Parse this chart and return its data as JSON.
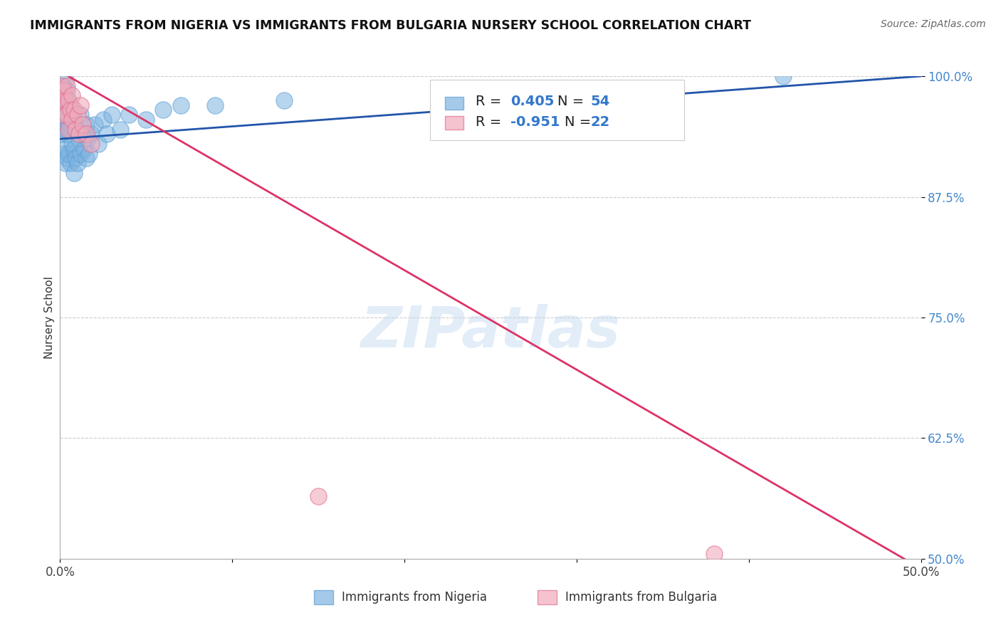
{
  "title": "IMMIGRANTS FROM NIGERIA VS IMMIGRANTS FROM BULGARIA NURSERY SCHOOL CORRELATION CHART",
  "source": "Source: ZipAtlas.com",
  "ylabel": "Nursery School",
  "xlim": [
    0.0,
    0.5
  ],
  "ylim": [
    0.5,
    1.0
  ],
  "xticks": [
    0.0,
    0.1,
    0.2,
    0.3,
    0.4,
    0.5
  ],
  "xticklabels": [
    "0.0%",
    "",
    "",
    "",
    "",
    "50.0%"
  ],
  "yticks": [
    0.5,
    0.625,
    0.75,
    0.875,
    1.0
  ],
  "yticklabels": [
    "50.0%",
    "62.5%",
    "75.0%",
    "87.5%",
    "100.0%"
  ],
  "nigeria_R": 0.405,
  "nigeria_N": 54,
  "bulgaria_R": -0.951,
  "bulgaria_N": 22,
  "nigeria_color": "#7EB3E0",
  "nigeria_edge_color": "#5B9FD4",
  "bulgaria_color": "#F0AABB",
  "bulgaria_edge_color": "#E07090",
  "nigeria_trend_color": "#2255AA",
  "bulgaria_trend_color": "#DD3366",
  "watermark": "ZIPatlas",
  "legend_R_color": "#3377CC",
  "legend_N_color": "#3377CC",
  "nigeria_x": [
    0.001,
    0.001,
    0.001,
    0.002,
    0.002,
    0.002,
    0.002,
    0.003,
    0.003,
    0.003,
    0.003,
    0.003,
    0.004,
    0.004,
    0.004,
    0.004,
    0.005,
    0.005,
    0.005,
    0.006,
    0.006,
    0.006,
    0.007,
    0.007,
    0.008,
    0.008,
    0.008,
    0.009,
    0.009,
    0.01,
    0.01,
    0.011,
    0.012,
    0.012,
    0.013,
    0.014,
    0.015,
    0.015,
    0.016,
    0.017,
    0.018,
    0.02,
    0.022,
    0.025,
    0.027,
    0.03,
    0.035,
    0.04,
    0.05,
    0.06,
    0.07,
    0.09,
    0.13,
    0.42
  ],
  "nigeria_y": [
    0.975,
    0.96,
    0.94,
    0.99,
    0.975,
    0.955,
    0.92,
    0.995,
    0.97,
    0.945,
    0.925,
    0.91,
    0.985,
    0.965,
    0.94,
    0.915,
    0.975,
    0.95,
    0.92,
    0.97,
    0.945,
    0.91,
    0.965,
    0.93,
    0.955,
    0.925,
    0.9,
    0.95,
    0.915,
    0.945,
    0.91,
    0.935,
    0.96,
    0.92,
    0.94,
    0.925,
    0.95,
    0.915,
    0.935,
    0.92,
    0.94,
    0.95,
    0.93,
    0.955,
    0.94,
    0.96,
    0.945,
    0.96,
    0.955,
    0.965,
    0.97,
    0.97,
    0.975,
    1.0
  ],
  "bulgaria_x": [
    0.001,
    0.001,
    0.002,
    0.002,
    0.003,
    0.004,
    0.004,
    0.005,
    0.005,
    0.006,
    0.007,
    0.007,
    0.008,
    0.009,
    0.01,
    0.011,
    0.012,
    0.013,
    0.015,
    0.018,
    0.15,
    0.38
  ],
  "bulgaria_y": [
    0.99,
    0.975,
    0.985,
    0.96,
    0.975,
    0.99,
    0.96,
    0.975,
    0.945,
    0.965,
    0.98,
    0.955,
    0.965,
    0.945,
    0.96,
    0.94,
    0.97,
    0.95,
    0.94,
    0.93,
    0.565,
    0.505
  ]
}
